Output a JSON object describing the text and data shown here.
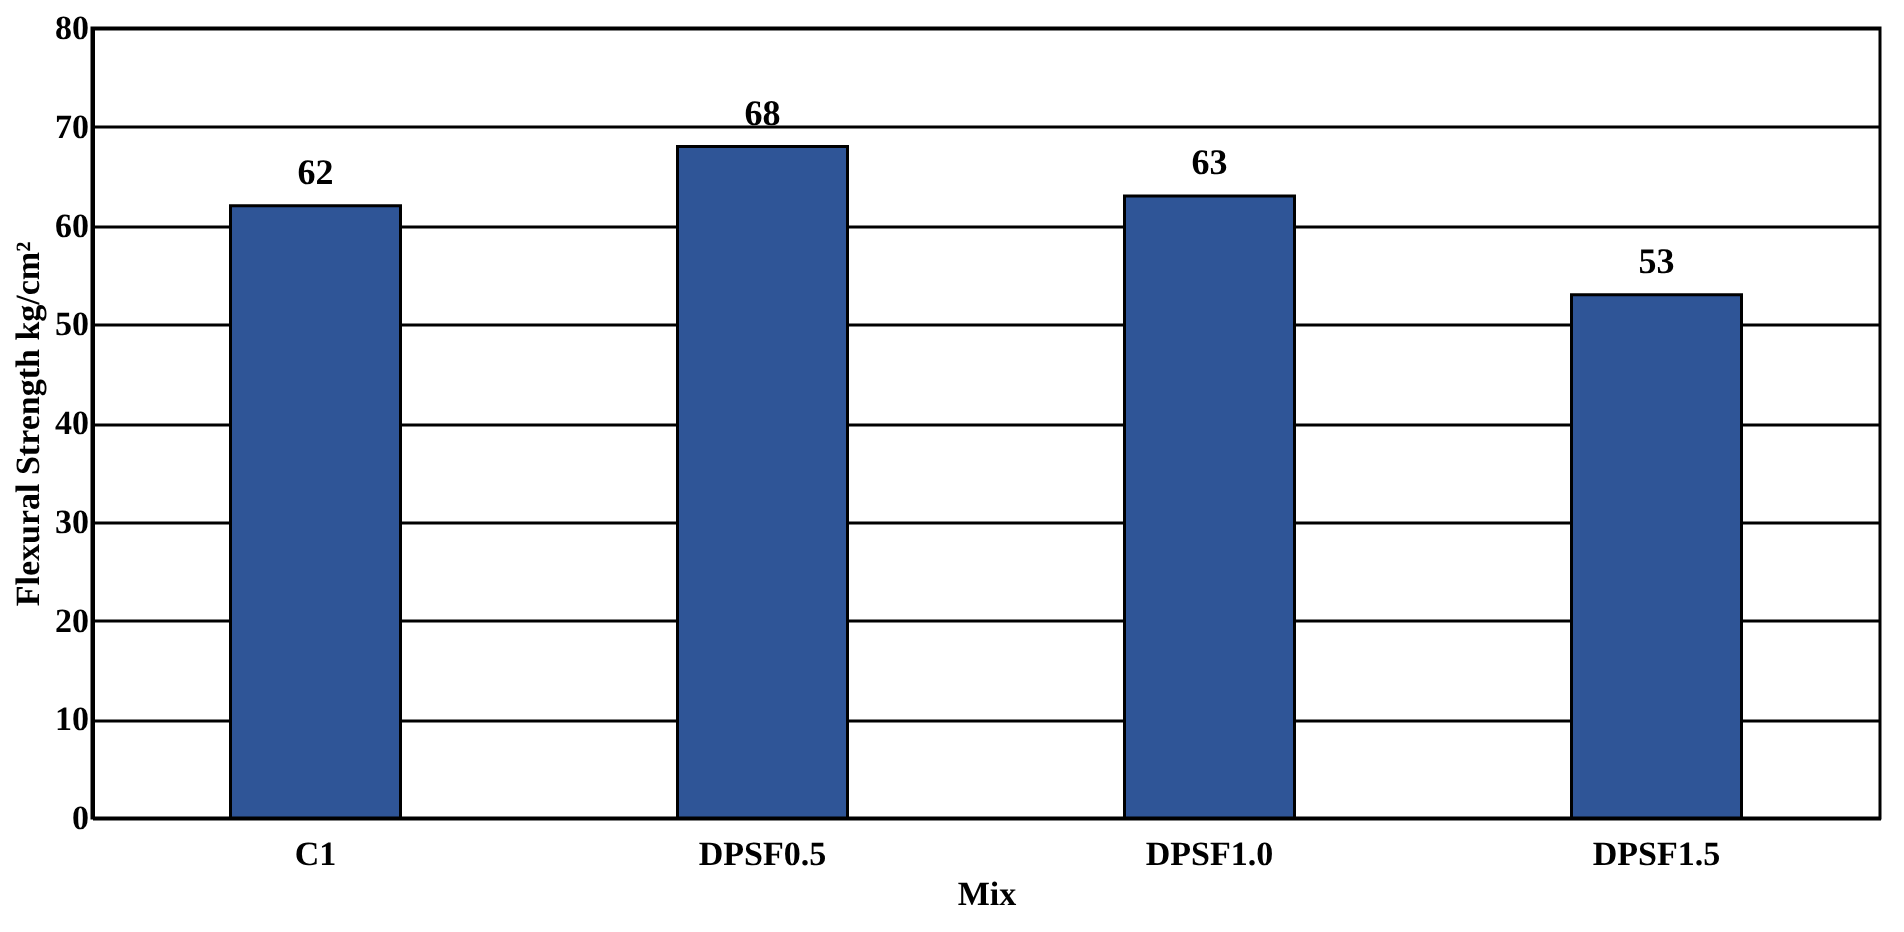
{
  "chart_data": {
    "type": "bar",
    "xlabel": "Mix",
    "ylabel": "Flexural Strength kg/cm²",
    "categories": [
      "C1",
      "DPSF0.5",
      "DPSF1.0",
      "DPSF1.5"
    ],
    "values": [
      62,
      68,
      63,
      53
    ],
    "color": "#2f5597",
    "ylim": [
      0,
      80
    ],
    "yticks": [
      0,
      10,
      20,
      30,
      40,
      50,
      60,
      70,
      80
    ],
    "grid": "y",
    "data_labels": true
  }
}
